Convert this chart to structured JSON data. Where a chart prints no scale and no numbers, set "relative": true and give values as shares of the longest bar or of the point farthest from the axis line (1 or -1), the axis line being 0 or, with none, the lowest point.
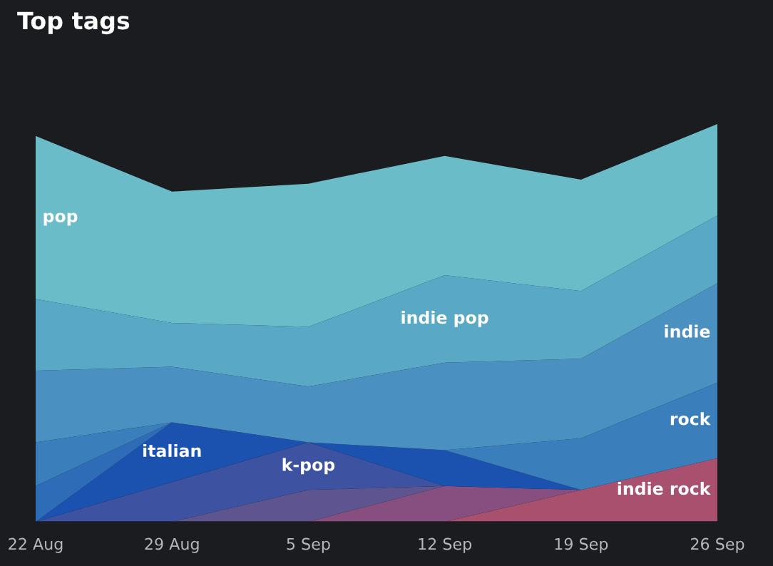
{
  "chart_data": {
    "type": "area",
    "title": "Top tags",
    "relative": true,
    "stacked": true,
    "legend": false,
    "grid": false,
    "categories": [
      "22 Aug",
      "29 Aug",
      "5 Sep",
      "12 Sep",
      "19 Sep",
      "26 Sep"
    ],
    "series": [
      {
        "name": "indie rock",
        "color": "#a8506e",
        "values": [
          null,
          null,
          null,
          0,
          0.08,
          0.16
        ]
      },
      {
        "color": "#874f80",
        "values": [
          null,
          null,
          0,
          0.09,
          0,
          null
        ]
      },
      {
        "color": "#5e5590",
        "values": [
          null,
          0,
          0.08,
          0,
          null,
          null
        ]
      },
      {
        "name": "k-pop",
        "color": "#3d52a0",
        "values": [
          0,
          0.1,
          0.12,
          0,
          null,
          null
        ]
      },
      {
        "name": "italian",
        "color": "#1b52b0",
        "values": [
          0,
          0.15,
          0,
          0.09,
          0,
          null
        ]
      },
      {
        "color": "#2f6cb8",
        "values": [
          0.09,
          0,
          null,
          null,
          null,
          null
        ]
      },
      {
        "name": "rock",
        "color": "#3a7ebc",
        "values": [
          0.11,
          0,
          null,
          0,
          0.13,
          0.19
        ]
      },
      {
        "name": "indie",
        "color": "#4a90c0",
        "values": [
          0.18,
          0.14,
          0.14,
          0.22,
          0.2,
          0.25
        ]
      },
      {
        "name": "indie pop",
        "color": "#58a8c6",
        "values": [
          0.18,
          0.11,
          0.15,
          0.22,
          0.17,
          0.17
        ]
      },
      {
        "name": "pop",
        "color": "#6abcc9",
        "values": [
          0.41,
          0.33,
          0.36,
          0.3,
          0.28,
          0.23
        ]
      }
    ]
  }
}
